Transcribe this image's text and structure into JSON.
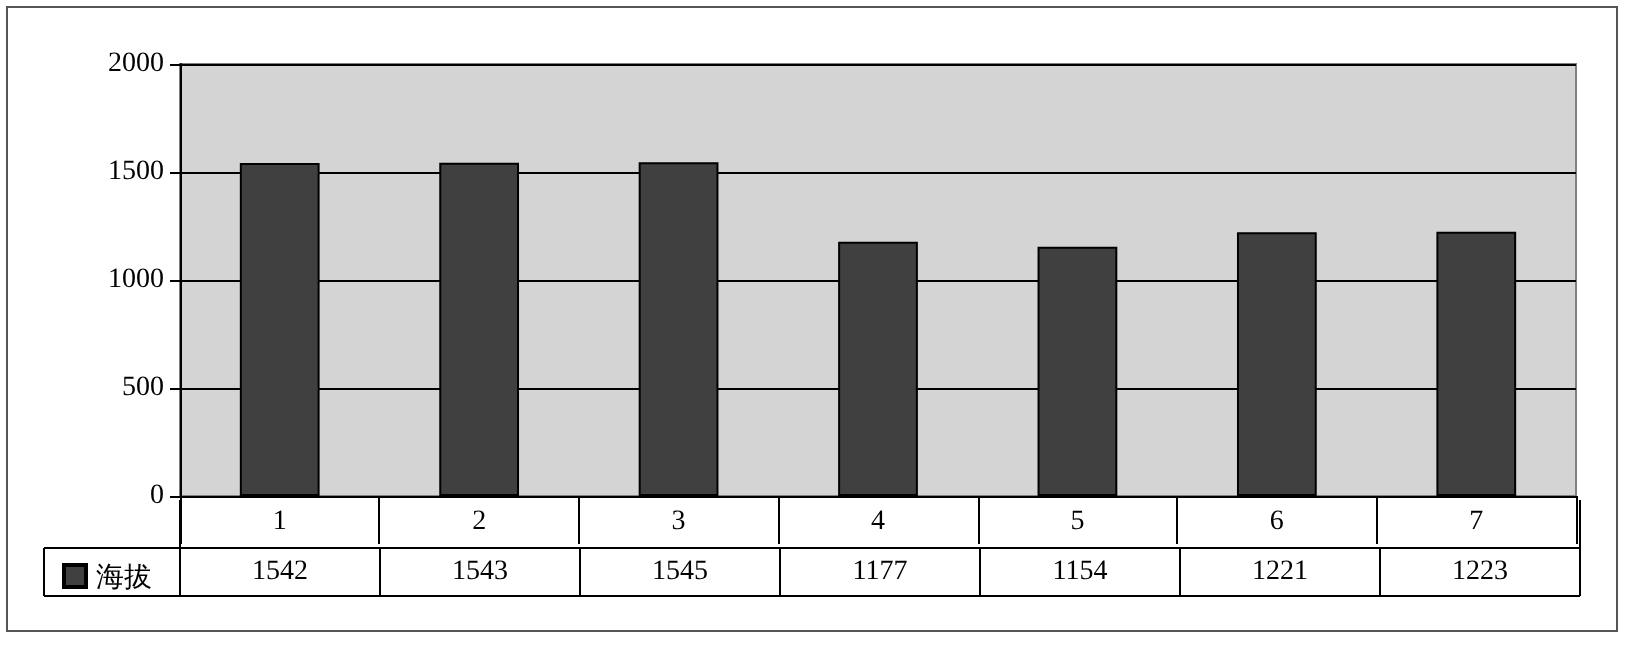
{
  "chart_data": {
    "type": "bar",
    "categories": [
      "1",
      "2",
      "3",
      "4",
      "5",
      "6",
      "7"
    ],
    "series": [
      {
        "name": "海拔",
        "color": "#404040",
        "values": [
          1542,
          1543,
          1545,
          1177,
          1154,
          1221,
          1223
        ]
      }
    ],
    "ylim": [
      0,
      2000
    ],
    "yticks": [
      0,
      500,
      1000,
      1500,
      2000
    ],
    "grid": "y",
    "legend": "bottom left",
    "data_labels": true
  }
}
